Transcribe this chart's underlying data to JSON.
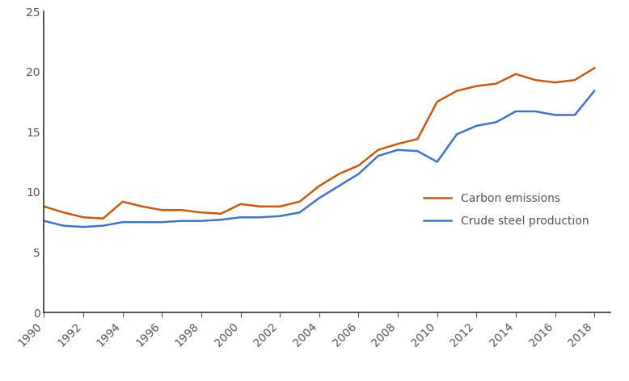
{
  "years": [
    1990,
    1991,
    1992,
    1993,
    1994,
    1995,
    1996,
    1997,
    1998,
    1999,
    2000,
    2001,
    2002,
    2003,
    2004,
    2005,
    2006,
    2007,
    2008,
    2009,
    2010,
    2011,
    2012,
    2013,
    2014,
    2015,
    2016,
    2017,
    2018
  ],
  "carbon_emissions": [
    8.8,
    8.3,
    7.9,
    7.8,
    9.2,
    8.8,
    8.5,
    8.5,
    8.3,
    8.2,
    9.0,
    8.8,
    8.8,
    9.2,
    10.5,
    11.5,
    12.2,
    13.5,
    14.0,
    14.4,
    17.5,
    18.4,
    18.8,
    19.0,
    19.8,
    19.3,
    19.1,
    19.3,
    20.3
  ],
  "crude_steel": [
    7.6,
    7.2,
    7.1,
    7.2,
    7.5,
    7.5,
    7.5,
    7.6,
    7.6,
    7.7,
    7.9,
    7.9,
    8.0,
    8.3,
    9.5,
    10.5,
    11.5,
    13.0,
    13.5,
    13.4,
    12.5,
    14.8,
    15.5,
    15.8,
    16.7,
    16.7,
    16.4,
    16.4,
    18.4
  ],
  "carbon_color": "#C55A11",
  "steel_color": "#4472C4",
  "ylim": [
    0,
    25
  ],
  "yticks": [
    0,
    5,
    10,
    15,
    20,
    25
  ],
  "xlim_min": 1990,
  "xlim_max": 2018.8,
  "xticks": [
    1990,
    1992,
    1994,
    1996,
    1998,
    2000,
    2002,
    2004,
    2006,
    2008,
    2010,
    2012,
    2014,
    2016,
    2018
  ],
  "legend_labels": [
    "Carbon emissions",
    "Crude steel production"
  ],
  "background_color": "#ffffff",
  "line_width": 1.8,
  "tick_fontsize": 10
}
